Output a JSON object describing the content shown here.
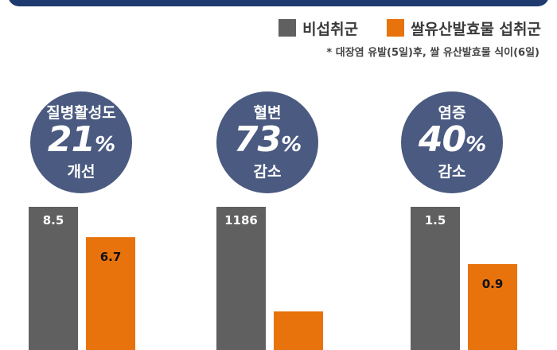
{
  "legend": [
    {
      "label": "비섭취군",
      "color": "#606060"
    },
    {
      "label": "쌀유산발효물 섭취군",
      "color": "#e8730c"
    }
  ],
  "footnote": "* 대장염 유발(5일)후, 쌀 유산발효물 식이(6일)",
  "bubbles": [
    {
      "top": "질병활성도",
      "value": "21",
      "unit": "%",
      "bottom": "개선"
    },
    {
      "top": "혈변",
      "value": "73",
      "unit": "%",
      "bottom": "감소"
    },
    {
      "top": "염증",
      "value": "40",
      "unit": "%",
      "bottom": "감소"
    }
  ],
  "chart_data": [
    {
      "type": "bar",
      "categories": [
        "비섭취군",
        "쌀유산발효물 섭취군"
      ],
      "values": [
        8.5,
        6.7
      ],
      "labels": [
        "8.5",
        "6.7"
      ]
    },
    {
      "type": "bar",
      "categories": [
        "비섭취군",
        "쌀유산발효물 섭취군"
      ],
      "values": [
        1186,
        320
      ],
      "labels": [
        "1186",
        ""
      ]
    },
    {
      "type": "bar",
      "categories": [
        "비섭취군",
        "쌀유산발효물 섭취군"
      ],
      "values": [
        1.5,
        0.9
      ],
      "labels": [
        "1.5",
        "0.9"
      ]
    }
  ]
}
